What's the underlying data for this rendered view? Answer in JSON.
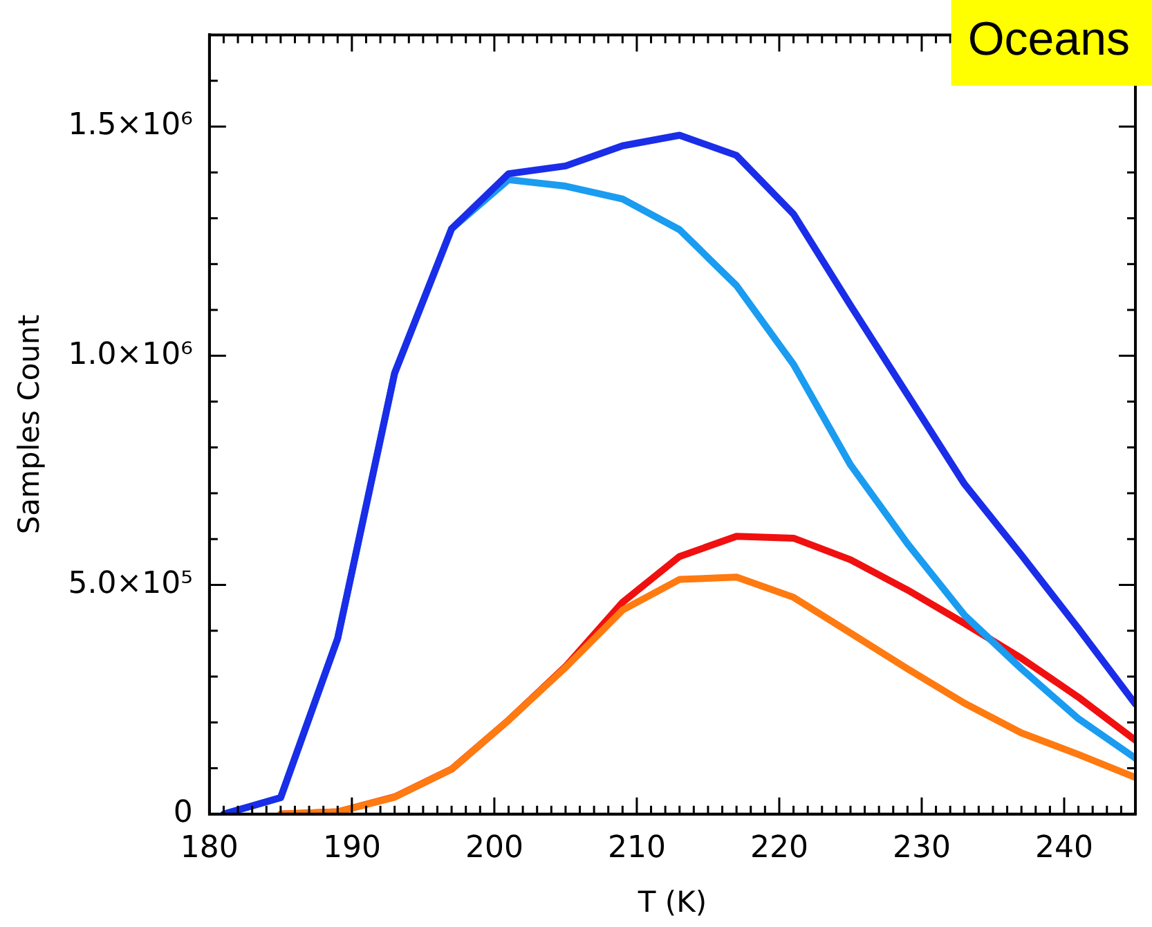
{
  "chart_data": {
    "type": "line",
    "xlabel": "T (K)",
    "ylabel": "Samples Count",
    "annotations": [
      "Oceans"
    ],
    "grid": false,
    "marker": "none",
    "x": [
      181,
      185,
      189,
      193,
      197,
      201,
      205,
      209,
      213,
      217,
      221,
      225,
      229,
      233,
      237,
      241,
      245
    ],
    "series": [
      {
        "color": "#1a2de8",
        "values": [
          0,
          36000,
          383000,
          962000,
          1277000,
          1397000,
          1414000,
          1458000,
          1481000,
          1437000,
          1309000,
          1110000,
          915000,
          720000,
          565000,
          405000,
          240000
        ]
      },
      {
        "color": "#1a9cf0",
        "x": [
          181,
          185,
          189,
          193,
          197,
          201,
          205,
          209,
          213,
          217,
          221,
          225,
          229,
          233,
          237,
          241,
          245
        ],
        "values": [
          0,
          36000,
          383000,
          962000,
          1277000,
          1384000,
          1370000,
          1342000,
          1275000,
          1153000,
          981000,
          762000,
          590000,
          434000,
          317000,
          208000,
          122000
        ]
      },
      {
        "color": "#ff7a10",
        "x": [
          185,
          189,
          193,
          197,
          201,
          205,
          209,
          213,
          217,
          221,
          225,
          229,
          233,
          237,
          241,
          245
        ],
        "values": [
          0,
          5000,
          37000,
          98000,
          205000,
          320000,
          445000,
          512000,
          517000,
          473000,
          395000,
          317000,
          242000,
          177000,
          130000,
          80000
        ]
      },
      {
        "color": "#f01010",
        "x": [
          185,
          189,
          193,
          197,
          201,
          205,
          209,
          213,
          217,
          221,
          225,
          229,
          233,
          237,
          241,
          245
        ],
        "values": [
          0,
          5000,
          37500,
          98000,
          205000,
          322000,
          462000,
          562000,
          606000,
          602000,
          555000,
          489000,
          416000,
          340000,
          255000,
          161000
        ]
      }
    ],
    "xlim": [
      180,
      245
    ],
    "xticks": [
      180,
      {
        "value": 181,
        "label": null
      },
      {
        "value": 182,
        "label": null
      },
      {
        "value": 183,
        "label": null
      },
      {
        "value": 184,
        "label": null
      },
      {
        "value": 185,
        "label": null
      },
      {
        "value": 186,
        "label": null
      },
      {
        "value": 187,
        "label": null
      },
      {
        "value": 188,
        "label": null
      },
      {
        "value": 189,
        "label": null
      },
      190,
      {
        "value": 191,
        "label": null
      },
      {
        "value": 192,
        "label": null
      },
      {
        "value": 193,
        "label": null
      },
      {
        "value": 194,
        "label": null
      },
      {
        "value": 195,
        "label": null
      },
      {
        "value": 196,
        "label": null
      },
      {
        "value": 197,
        "label": null
      },
      {
        "value": 198,
        "label": null
      },
      {
        "value": 199,
        "label": null
      },
      200,
      {
        "value": 201,
        "label": null
      },
      {
        "value": 202,
        "label": null
      },
      {
        "value": 203,
        "label": null
      },
      {
        "value": 204,
        "label": null
      },
      {
        "value": 205,
        "label": null
      },
      {
        "value": 206,
        "label": null
      },
      {
        "value": 207,
        "label": null
      },
      {
        "value": 208,
        "label": null
      },
      {
        "value": 209,
        "label": null
      },
      210,
      {
        "value": 211,
        "label": null
      },
      {
        "value": 212,
        "label": null
      },
      {
        "value": 213,
        "label": null
      },
      {
        "value": 214,
        "label": null
      },
      {
        "value": 215,
        "label": null
      },
      {
        "value": 216,
        "label": null
      },
      {
        "value": 217,
        "label": null
      },
      {
        "value": 218,
        "label": null
      },
      {
        "value": 219,
        "label": null
      },
      220,
      {
        "value": 221,
        "label": null
      },
      {
        "value": 222,
        "label": null
      },
      {
        "value": 223,
        "label": null
      },
      {
        "value": 224,
        "label": null
      },
      {
        "value": 225,
        "label": null
      },
      {
        "value": 226,
        "label": null
      },
      {
        "value": 227,
        "label": null
      },
      {
        "value": 228,
        "label": null
      },
      {
        "value": 229,
        "label": null
      },
      230,
      {
        "value": 231,
        "label": null
      },
      {
        "value": 232,
        "label": null
      },
      {
        "value": 233,
        "label": null
      },
      {
        "value": 234,
        "label": null
      },
      {
        "value": 235,
        "label": null
      },
      {
        "value": 236,
        "label": null
      },
      {
        "value": 237,
        "label": null
      },
      {
        "value": 238,
        "label": null
      },
      {
        "value": 239,
        "label": null
      },
      240,
      {
        "value": 241,
        "label": null
      },
      {
        "value": 242,
        "label": null
      },
      {
        "value": 243,
        "label": null
      },
      {
        "value": 244,
        "label": null
      },
      {
        "value": 245,
        "label": null
      }
    ],
    "ylim": [
      0,
      1700000
    ],
    "yticks": [
      0,
      {
        "value": 100000,
        "label": null
      },
      {
        "value": 200000,
        "label": null
      },
      {
        "value": 300000,
        "label": null
      },
      {
        "value": 400000,
        "label": null
      },
      {
        "value": 500000,
        "label": "5.0×10⁵"
      },
      {
        "value": 600000,
        "label": null
      },
      {
        "value": 700000,
        "label": null
      },
      {
        "value": 800000,
        "label": null
      },
      {
        "value": 900000,
        "label": null
      },
      {
        "value": 1000000,
        "label": "1.0×10⁶"
      },
      {
        "value": 1100000,
        "label": null
      },
      {
        "value": 1200000,
        "label": null
      },
      {
        "value": 1300000,
        "label": null
      },
      {
        "value": 1400000,
        "label": null
      },
      {
        "value": 1500000,
        "label": "1.5×10⁶"
      },
      {
        "value": 1600000,
        "label": null
      },
      {
        "value": 1700000,
        "label": null
      }
    ]
  }
}
